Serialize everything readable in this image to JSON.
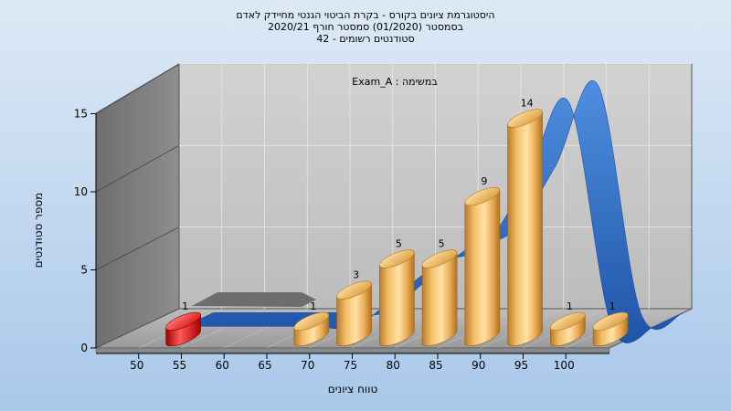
{
  "title_lines": [
    "היסטוגרמת ציונים בקורס - בקרת הביטוי הגנטי מחיידק לאדם",
    "בסמסטר  (01/2020)  סמסטר חורף  2020/21",
    "סטודנטים רשומים - 42"
  ],
  "chart_data": {
    "type": "bar",
    "title": "היסטוגרמת ציונים בקורס - בקרת הביטוי הגנטי מחיידק לאדם",
    "subtitle": "בסמסטר  (01/2020)  סמסטר חורף  2020/21 | סטודנטים רשומים - 42",
    "annotation": "Exam_A : במשימה",
    "xlabel": "טווח ציונים",
    "ylabel": "מספר סטודנטים",
    "x_ticks": [
      "50",
      "55",
      "60",
      "65",
      "70",
      "75",
      "80",
      "85",
      "90",
      "95",
      "100"
    ],
    "y_ticks": [
      "0",
      "5",
      "10",
      "15"
    ],
    "ylim": [
      0,
      15
    ],
    "bars": [
      {
        "x": 52.5,
        "value": 1,
        "label": "1",
        "color": "#e02020"
      },
      {
        "x": 67.5,
        "value": 1,
        "label": "1",
        "color": "#e8a94a"
      },
      {
        "x": 72.5,
        "value": 3,
        "label": "3",
        "color": "#e8a94a"
      },
      {
        "x": 77.5,
        "value": 5,
        "label": "5",
        "color": "#e8a94a"
      },
      {
        "x": 82.5,
        "value": 5,
        "label": "5",
        "color": "#e8a94a"
      },
      {
        "x": 87.5,
        "value": 9,
        "label": "9",
        "color": "#e8a94a"
      },
      {
        "x": 92.5,
        "value": 14,
        "label": "14",
        "color": "#e8a94a"
      },
      {
        "x": 97.5,
        "value": 1,
        "label": "1",
        "color": "#e8a94a"
      },
      {
        "x": 102.5,
        "value": 1,
        "label": "1",
        "color": "#e8a94a"
      }
    ],
    "series": [
      {
        "type": "bar",
        "x": [
          52.5,
          67.5,
          72.5,
          77.5,
          82.5,
          87.5,
          92.5,
          97.5,
          102.5
        ],
        "values": [
          1,
          1,
          3,
          5,
          5,
          9,
          14,
          1,
          1
        ]
      },
      {
        "type": "area-line",
        "x": [
          50,
          55,
          60,
          65,
          70,
          75,
          80,
          85,
          90,
          95,
          100,
          105
        ],
        "values": [
          0,
          0,
          0,
          0,
          0,
          2,
          4,
          5,
          9,
          14,
          0,
          0
        ]
      }
    ],
    "colors": {
      "bars": "#e8a94a",
      "low_bar": "#e02020",
      "curve": "#3a74c8",
      "back_wall": "#c6c6c6",
      "side_wall": "#7d7d7d",
      "floor": "#a8a8a8"
    },
    "grid": true
  }
}
